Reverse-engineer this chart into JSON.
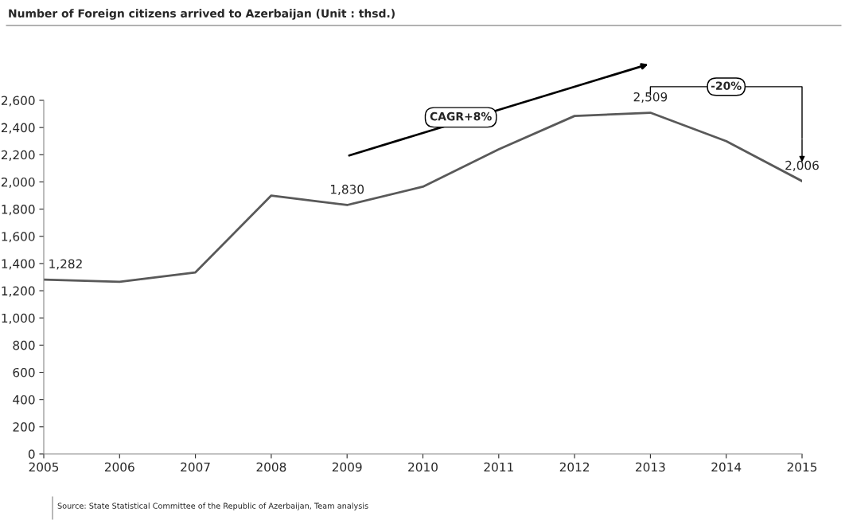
{
  "chart_data": {
    "type": "line",
    "title": "Number of Foreign citizens arrived to Azerbaijan (Unit : thsd.)",
    "x": [
      2005,
      2006,
      2007,
      2008,
      2009,
      2010,
      2011,
      2012,
      2013,
      2014,
      2015
    ],
    "series": [
      {
        "color": "#595959",
        "values": [
          1282,
          1265,
          1335,
          1900,
          1830,
          1965,
          2240,
          2485,
          2509,
          2300,
          2006
        ],
        "value_labels": [
          "1,282",
          null,
          null,
          null,
          "1,830",
          null,
          null,
          null,
          "2,509",
          null,
          "2,006"
        ]
      }
    ],
    "xlim": [
      2005,
      2015
    ],
    "xticks": [
      2005,
      2006,
      2007,
      2008,
      2009,
      2010,
      2011,
      2012,
      2013,
      2014,
      2015
    ],
    "ylim": [
      0,
      2600
    ],
    "yticks": [
      {
        "value": 0,
        "label": "0"
      },
      {
        "value": 200,
        "label": "200"
      },
      {
        "value": 400,
        "label": "400"
      },
      {
        "value": 600,
        "label": "600"
      },
      {
        "value": 800,
        "label": "800"
      },
      {
        "value": 1000,
        "label": "1,000"
      },
      {
        "value": 1200,
        "label": "1,200"
      },
      {
        "value": 1400,
        "label": "1,400"
      },
      {
        "value": 1600,
        "label": "1,600"
      },
      {
        "value": 1800,
        "label": "1,800"
      },
      {
        "value": 2000,
        "label": "2,000"
      },
      {
        "value": 2200,
        "label": "2,200"
      },
      {
        "value": 2400,
        "label": "2,400"
      },
      {
        "value": 2600,
        "label": "2,600"
      }
    ],
    "grid": false,
    "legend": false,
    "marker": "none",
    "line_style": "solid",
    "annotations": [
      "CAGR+8%",
      "-20%",
      "Source: State Statistical Committee of the Republic of Azerbaijan, Team analysis"
    ]
  }
}
